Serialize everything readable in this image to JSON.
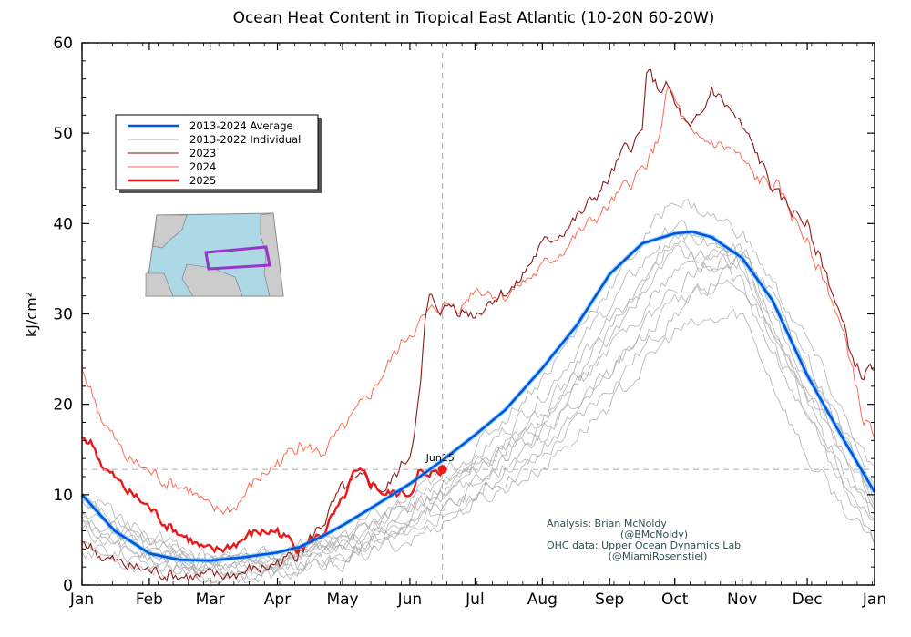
{
  "chart_data": {
    "type": "line",
    "title": "Ocean Heat Content in Tropical East Atlantic (10-20N 60-20W)",
    "xlabel": "",
    "ylabel": "kJ/cm²",
    "x_unit": "day of year",
    "xlim": [
      0,
      365
    ],
    "ylim": [
      0,
      60
    ],
    "yticks": [
      0,
      10,
      20,
      30,
      40,
      50,
      60
    ],
    "month_labels": [
      "Jan",
      "Feb",
      "Mar",
      "Apr",
      "May",
      "Jun",
      "Jul",
      "Aug",
      "Sep",
      "Oct",
      "Nov",
      "Dec",
      "Jan"
    ],
    "month_starts": [
      0,
      31,
      59,
      90,
      120,
      151,
      181,
      212,
      243,
      273,
      304,
      334,
      365
    ],
    "grid": false,
    "legend_position": "upper-left",
    "reference": {
      "x": 166,
      "y": 12.8,
      "label": "Jun15"
    },
    "series": [
      {
        "name": "2013-2024 Average",
        "color": "#0055dd",
        "width": 2.6,
        "x": [
          0,
          15,
          31,
          45,
          59,
          75,
          90,
          100,
          110,
          120,
          135,
          151,
          166,
          181,
          195,
          212,
          228,
          243,
          258,
          273,
          281,
          290,
          304,
          318,
          334,
          350,
          365
        ],
        "values": [
          10,
          6,
          3.5,
          2.8,
          2.7,
          3.1,
          3.6,
          4.2,
          5.3,
          6.6,
          8.8,
          11.2,
          13.8,
          16.6,
          19.4,
          24,
          28.8,
          34.4,
          37.8,
          38.9,
          39.1,
          38.5,
          36.2,
          31.5,
          23.2,
          16.4,
          10.3
        ]
      },
      {
        "name": "2023",
        "color": "#8b1a1a",
        "width": 1.1,
        "x": [
          0,
          10,
          20,
          31,
          45,
          55,
          63,
          75,
          85,
          90,
          100,
          110,
          120,
          130,
          140,
          151,
          156,
          158,
          160,
          166,
          170,
          181,
          190,
          200,
          210,
          220,
          230,
          243,
          250,
          258,
          260,
          265,
          270,
          273,
          280,
          286,
          290,
          300,
          310,
          320,
          334,
          345,
          355,
          360,
          365
        ],
        "values": [
          5,
          3,
          2,
          1.5,
          1,
          0.8,
          0.9,
          1.4,
          2,
          2.5,
          3.5,
          6.5,
          10.5,
          11.5,
          10.5,
          14.5,
          22,
          29,
          31.5,
          30.5,
          31,
          30,
          32,
          33,
          37,
          39,
          41,
          45,
          48,
          50,
          57.5,
          55,
          55,
          53,
          50,
          52,
          55,
          52,
          48,
          43,
          40,
          33,
          25,
          23,
          24.5
        ]
      },
      {
        "name": "2024",
        "color": "#ff6a55",
        "width": 1.0,
        "x": [
          0,
          10,
          20,
          31,
          38,
          45,
          50,
          60,
          70,
          80,
          90,
          100,
          110,
          120,
          130,
          140,
          151,
          160,
          166,
          175,
          181,
          195,
          212,
          225,
          243,
          258,
          265,
          270,
          276,
          282,
          290,
          300,
          310,
          320,
          334,
          345,
          355,
          360,
          365
        ],
        "values": [
          24,
          18,
          14,
          12.5,
          11.5,
          11,
          10.5,
          8,
          8.5,
          11.5,
          13.5,
          15.5,
          14.5,
          17,
          20,
          24,
          28,
          30,
          31,
          31,
          33,
          32,
          35,
          38,
          42,
          46,
          49,
          55,
          52,
          49,
          49,
          48,
          45,
          44,
          38,
          32,
          24,
          18,
          17
        ]
      },
      {
        "name": "2025",
        "color": "#e81a1a",
        "width": 2.4,
        "x": [
          0,
          5,
          10,
          20,
          31,
          40,
          50,
          55,
          60,
          70,
          80,
          90,
          100,
          110,
          120,
          125,
          130,
          140,
          151,
          155,
          160,
          163,
          166
        ],
        "values": [
          16.5,
          15.5,
          13,
          10.5,
          8.5,
          6.5,
          5,
          4,
          3.5,
          4.5,
          5.8,
          6,
          4,
          5.5,
          9,
          12,
          12,
          10,
          10.2,
          12.5,
          11.5,
          12.8,
          12.8
        ]
      }
    ],
    "individual_series": [
      {
        "name": "2013-2022 Individual",
        "color": "#a9a9a9"
      }
    ],
    "individual_lines": [
      {
        "x": [
          0,
          31,
          59,
          90,
          120,
          151,
          181,
          212,
          243,
          273,
          304,
          334,
          365
        ],
        "values": [
          6,
          3,
          1.5,
          1.8,
          3,
          6,
          10,
          14,
          22,
          30,
          36,
          20,
          6
        ]
      },
      {
        "x": [
          0,
          31,
          59,
          90,
          120,
          151,
          181,
          212,
          243,
          273,
          304,
          334,
          365
        ],
        "values": [
          9,
          5,
          3,
          3,
          4.5,
          8,
          13,
          18,
          26,
          35,
          37,
          24,
          11
        ]
      },
      {
        "x": [
          0,
          31,
          59,
          90,
          120,
          151,
          181,
          212,
          243,
          273,
          304,
          334,
          365
        ],
        "values": [
          5,
          2.5,
          1,
          1.5,
          3.5,
          7,
          11,
          16,
          27,
          38,
          33,
          18,
          5
        ]
      },
      {
        "x": [
          0,
          31,
          59,
          90,
          120,
          151,
          181,
          212,
          243,
          273,
          304,
          334,
          365
        ],
        "values": [
          8,
          4,
          2,
          2.5,
          5,
          9,
          14,
          21,
          31,
          40,
          35,
          22,
          8
        ]
      },
      {
        "x": [
          0,
          31,
          59,
          90,
          120,
          151,
          181,
          212,
          243,
          273,
          304,
          334,
          365
        ],
        "values": [
          7,
          3.5,
          2,
          2.2,
          4,
          7.5,
          12,
          17,
          24,
          33,
          38,
          25,
          9
        ]
      },
      {
        "x": [
          0,
          31,
          59,
          90,
          120,
          151,
          181,
          212,
          243,
          273,
          304,
          334,
          365
        ],
        "values": [
          10,
          5.5,
          3,
          3.5,
          5.5,
          9.5,
          15,
          23,
          33,
          43,
          39,
          27,
          12
        ]
      },
      {
        "x": [
          0,
          31,
          59,
          90,
          120,
          151,
          181,
          212,
          243,
          273,
          304,
          334,
          365
        ],
        "values": [
          4,
          2,
          0.8,
          1,
          2.5,
          5,
          9,
          13,
          20,
          28,
          30,
          14,
          4
        ]
      },
      {
        "x": [
          0,
          31,
          59,
          90,
          120,
          151,
          181,
          212,
          243,
          273,
          304,
          334,
          365
        ],
        "values": [
          9,
          4.5,
          2.5,
          3,
          5,
          8.5,
          13,
          19,
          29,
          37,
          36,
          23,
          10
        ]
      },
      {
        "x": [
          0,
          31,
          59,
          90,
          120,
          151,
          181,
          212,
          243,
          273,
          304,
          334,
          365
        ],
        "values": [
          6.5,
          3,
          1.2,
          1.6,
          3.2,
          6.5,
          10.5,
          15,
          23,
          32,
          34,
          19,
          7
        ]
      },
      {
        "x": [
          0,
          31,
          59,
          90,
          120,
          151,
          181,
          212,
          243,
          273,
          304,
          334,
          365
        ],
        "values": [
          8,
          4,
          2.2,
          2.8,
          4.8,
          8,
          12.5,
          18.5,
          28,
          39,
          37,
          21,
          9
        ]
      }
    ],
    "legend": [
      "2013-2024 Average",
      "2013-2022 Individual",
      "2023",
      "2024",
      "2025"
    ],
    "credits": [
      "Analysis: Brian McNoldy",
      "(@BMcNoldy)",
      "OHC data: Upper Ocean Dynamics Lab",
      "(@MiamiRosenstiel)"
    ],
    "inset_map": {
      "description_box": "10-20N 60-20W",
      "box_color": "#9933cc"
    }
  }
}
